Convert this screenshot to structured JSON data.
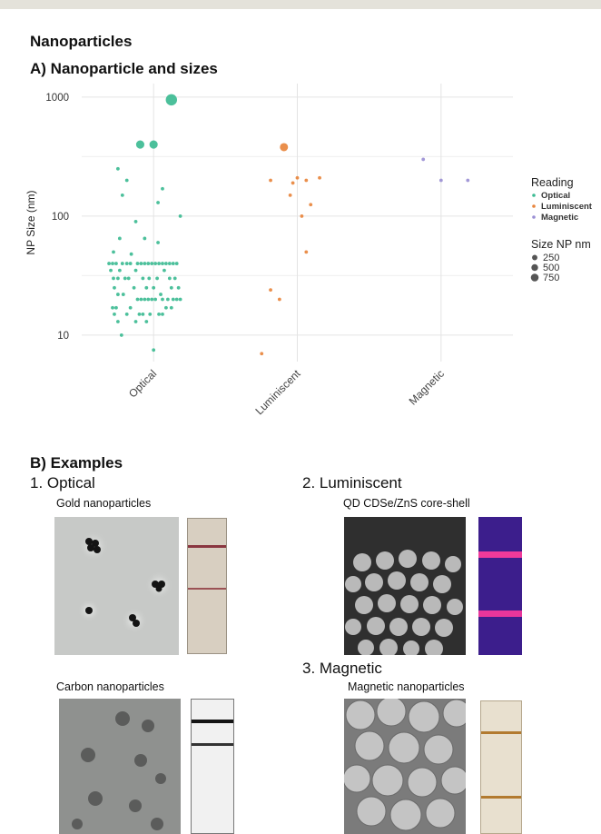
{
  "page_title": "Nanoparticles",
  "panel_a": {
    "title": "A) Nanoparticle and sizes"
  },
  "panel_b": {
    "title": "B) Examples",
    "optical": {
      "heading": "1. Optical",
      "gold_caption": "Gold nanoparticles",
      "carbon_caption": "Carbon nanoparticles"
    },
    "luminiscent": {
      "heading": "2. Luminiscent",
      "qd_caption": "QD CDSe/ZnS core-shell"
    },
    "magnetic": {
      "heading": "3. Magnetic",
      "mag_caption": "Magnetic nanoparticles"
    }
  },
  "chart_data": {
    "type": "scatter",
    "title": "",
    "xlabel": "",
    "ylabel": "NP Size (nm)",
    "y_scale": "log",
    "ylim": [
      6,
      1300
    ],
    "y_ticks": [
      10,
      100,
      1000
    ],
    "categories": [
      "Optical",
      "Luminiscent",
      "Magnetic"
    ],
    "grid": true,
    "legend": {
      "placement": "right",
      "color_title": "Reading",
      "size_title": "Size NP nm",
      "size_entries": [
        250,
        500,
        750
      ]
    },
    "series": [
      {
        "name": "Optical",
        "color": "#3dbb93",
        "points": [
          {
            "x": 0.2,
            "y": 950
          },
          {
            "x": -0.15,
            "y": 400
          },
          {
            "x": 0.0,
            "y": 400
          },
          {
            "x": -0.4,
            "y": 250
          },
          {
            "x": -0.3,
            "y": 200
          },
          {
            "x": 0.1,
            "y": 170
          },
          {
            "x": -0.35,
            "y": 150
          },
          {
            "x": 0.05,
            "y": 130
          },
          {
            "x": 0.3,
            "y": 100
          },
          {
            "x": -0.2,
            "y": 90
          },
          {
            "x": -0.38,
            "y": 65
          },
          {
            "x": -0.1,
            "y": 65
          },
          {
            "x": 0.05,
            "y": 60
          },
          {
            "x": -0.45,
            "y": 50
          },
          {
            "x": -0.25,
            "y": 48
          },
          {
            "x": -0.5,
            "y": 40
          },
          {
            "x": -0.46,
            "y": 40
          },
          {
            "x": -0.42,
            "y": 40
          },
          {
            "x": -0.35,
            "y": 40
          },
          {
            "x": -0.3,
            "y": 40
          },
          {
            "x": -0.26,
            "y": 40
          },
          {
            "x": -0.18,
            "y": 40
          },
          {
            "x": -0.14,
            "y": 40
          },
          {
            "x": -0.1,
            "y": 40
          },
          {
            "x": -0.06,
            "y": 40
          },
          {
            "x": -0.02,
            "y": 40
          },
          {
            "x": 0.02,
            "y": 40
          },
          {
            "x": 0.06,
            "y": 40
          },
          {
            "x": 0.1,
            "y": 40
          },
          {
            "x": 0.14,
            "y": 40
          },
          {
            "x": 0.18,
            "y": 40
          },
          {
            "x": 0.22,
            "y": 40
          },
          {
            "x": 0.26,
            "y": 40
          },
          {
            "x": -0.48,
            "y": 35
          },
          {
            "x": -0.38,
            "y": 35
          },
          {
            "x": -0.2,
            "y": 35
          },
          {
            "x": 0.12,
            "y": 35
          },
          {
            "x": -0.45,
            "y": 30
          },
          {
            "x": -0.4,
            "y": 30
          },
          {
            "x": -0.32,
            "y": 30
          },
          {
            "x": -0.28,
            "y": 30
          },
          {
            "x": -0.12,
            "y": 30
          },
          {
            "x": -0.05,
            "y": 30
          },
          {
            "x": 0.04,
            "y": 30
          },
          {
            "x": 0.18,
            "y": 30
          },
          {
            "x": 0.24,
            "y": 30
          },
          {
            "x": -0.44,
            "y": 25
          },
          {
            "x": -0.22,
            "y": 25
          },
          {
            "x": -0.08,
            "y": 25
          },
          {
            "x": 0.0,
            "y": 25
          },
          {
            "x": 0.2,
            "y": 25
          },
          {
            "x": 0.28,
            "y": 25
          },
          {
            "x": -0.4,
            "y": 22
          },
          {
            "x": -0.34,
            "y": 22
          },
          {
            "x": 0.08,
            "y": 22
          },
          {
            "x": -0.18,
            "y": 20
          },
          {
            "x": -0.14,
            "y": 20
          },
          {
            "x": -0.1,
            "y": 20
          },
          {
            "x": -0.06,
            "y": 20
          },
          {
            "x": -0.02,
            "y": 20
          },
          {
            "x": 0.02,
            "y": 20
          },
          {
            "x": 0.1,
            "y": 20
          },
          {
            "x": 0.16,
            "y": 20
          },
          {
            "x": 0.22,
            "y": 20
          },
          {
            "x": 0.26,
            "y": 20
          },
          {
            "x": 0.3,
            "y": 20
          },
          {
            "x": -0.46,
            "y": 17
          },
          {
            "x": -0.42,
            "y": 17
          },
          {
            "x": -0.26,
            "y": 17
          },
          {
            "x": 0.14,
            "y": 17
          },
          {
            "x": 0.2,
            "y": 17
          },
          {
            "x": -0.44,
            "y": 15
          },
          {
            "x": -0.3,
            "y": 15
          },
          {
            "x": -0.16,
            "y": 15
          },
          {
            "x": -0.12,
            "y": 15
          },
          {
            "x": -0.04,
            "y": 15
          },
          {
            "x": 0.06,
            "y": 15
          },
          {
            "x": 0.1,
            "y": 15
          },
          {
            "x": -0.4,
            "y": 13
          },
          {
            "x": -0.2,
            "y": 13
          },
          {
            "x": -0.08,
            "y": 13
          },
          {
            "x": -0.36,
            "y": 10
          },
          {
            "x": 0.0,
            "y": 7.5
          }
        ]
      },
      {
        "name": "Luminiscent",
        "color": "#e8853d",
        "points": [
          {
            "x": -0.15,
            "y": 380
          },
          {
            "x": -0.3,
            "y": 200
          },
          {
            "x": -0.05,
            "y": 190
          },
          {
            "x": 0.0,
            "y": 210
          },
          {
            "x": 0.1,
            "y": 200
          },
          {
            "x": 0.25,
            "y": 210
          },
          {
            "x": -0.08,
            "y": 150
          },
          {
            "x": 0.15,
            "y": 125
          },
          {
            "x": 0.05,
            "y": 100
          },
          {
            "x": 0.1,
            "y": 50
          },
          {
            "x": -0.3,
            "y": 24
          },
          {
            "x": -0.2,
            "y": 20
          },
          {
            "x": -0.4,
            "y": 7
          }
        ]
      },
      {
        "name": "Magnetic",
        "color": "#9a8fd4",
        "points": [
          {
            "x": -0.2,
            "y": 300
          },
          {
            "x": 0.0,
            "y": 200
          },
          {
            "x": 0.3,
            "y": 200
          }
        ]
      }
    ],
    "point_sizes": [
      {
        "series": 0,
        "index": 0,
        "value": 950
      },
      {
        "series": 0,
        "index": 1,
        "value": 400
      },
      {
        "series": 0,
        "index": 2,
        "value": 400
      },
      {
        "series": 1,
        "index": 0,
        "value": 380
      }
    ]
  }
}
